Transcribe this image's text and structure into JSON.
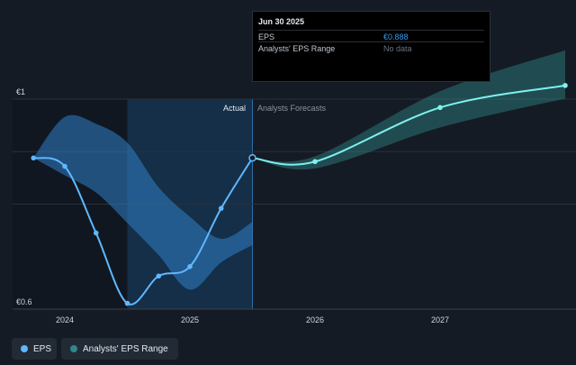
{
  "tooltip": {
    "date": "Jun 30 2025",
    "rows": [
      {
        "label": "EPS",
        "value": "€0.888",
        "color": "#2f9cf0"
      },
      {
        "label": "Analysts' EPS Range",
        "value": "No data",
        "color": "#6b7480"
      }
    ]
  },
  "legend": {
    "eps_label": "EPS",
    "range_label": "Analysts' EPS Range",
    "eps_color": "#5fb8ff",
    "range_color": "#2e8a8a"
  },
  "chart_data": {
    "type": "line",
    "y_top_label": "€1",
    "y_bottom_label": "€0.6",
    "ylim": [
      0.6,
      1.0
    ],
    "actual_label": "Actual",
    "forecast_label": "Analysts Forecasts",
    "x_ticks": [
      {
        "x": 2024.0,
        "label": "2024"
      },
      {
        "x": 2025.0,
        "label": "2025"
      },
      {
        "x": 2026.0,
        "label": "2026"
      },
      {
        "x": 2027.0,
        "label": "2027"
      }
    ],
    "highlight_region": [
      2024.5,
      2025.5
    ],
    "actual_x_boundary": 2025.5,
    "grid": true,
    "legend_position": "bottom-left",
    "series": [
      {
        "name": "EPS",
        "color": "#5fb8ff",
        "points": [
          {
            "x": 2023.75,
            "y": 0.888
          },
          {
            "x": 2024.0,
            "y": 0.872
          },
          {
            "x": 2024.25,
            "y": 0.745
          },
          {
            "x": 2024.5,
            "y": 0.611
          },
          {
            "x": 2024.75,
            "y": 0.663
          },
          {
            "x": 2025.0,
            "y": 0.681
          },
          {
            "x": 2025.25,
            "y": 0.792
          },
          {
            "x": 2025.5,
            "y": 0.888
          }
        ]
      },
      {
        "name": "EPS",
        "color": "#7ff0f0",
        "forecast": true,
        "points": [
          {
            "x": 2025.5,
            "y": 0.888
          },
          {
            "x": 2026.0,
            "y": 0.881
          },
          {
            "x": 2027.0,
            "y": 0.984
          },
          {
            "x": 2028.0,
            "y": 1.026
          }
        ]
      }
    ],
    "ranges": [
      {
        "name": "Analysts' EPS Range",
        "color": "#2f7fc8",
        "x": [
          2023.75,
          2024.0,
          2024.25,
          2024.5,
          2024.75,
          2025.0,
          2025.25,
          2025.5
        ],
        "high": [
          0.888,
          0.966,
          0.953,
          0.917,
          0.832,
          0.776,
          0.734,
          0.766
        ],
        "low": [
          0.888,
          0.855,
          0.822,
          0.764,
          0.703,
          0.637,
          0.689,
          0.722
        ]
      },
      {
        "name": "Analysts' EPS Range",
        "color": "#2e8a8a",
        "x": [
          2025.5,
          2026.0,
          2027.0,
          2028.0
        ],
        "high": [
          0.888,
          0.891,
          1.015,
          1.093
        ],
        "low": [
          0.888,
          0.868,
          0.946,
          1.001
        ]
      }
    ]
  }
}
